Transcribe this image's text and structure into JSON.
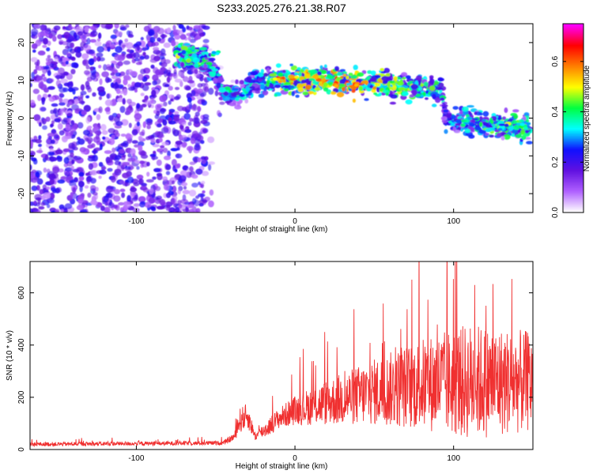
{
  "title": "S233.2025.276.21.38.R07",
  "colors": {
    "snr_line": "#f03030",
    "cmap_stops": [
      "#ffffff",
      "#b060ff",
      "#6010e0",
      "#1010ff",
      "#00ffff",
      "#00ff40",
      "#ffff00",
      "#ff8000",
      "#ff0000",
      "#ff00ff"
    ]
  },
  "chart_data": [
    {
      "type": "heatmap",
      "xlabel": "Height of straight line (km)",
      "ylabel": "Frequency (Hz)",
      "xlim": [
        -167,
        150
      ],
      "ylim": [
        -25,
        25
      ],
      "xticks": [
        -100,
        0,
        100
      ],
      "xtick_labels": [
        "-100",
        "0",
        "100"
      ],
      "yticks": [
        -20,
        -10,
        0,
        10,
        20
      ],
      "ytick_labels": [
        "-20",
        "-10",
        "0",
        "10",
        "20"
      ],
      "colorbar": {
        "label": "Normalized spectral amplitude",
        "range": [
          0.0,
          0.75
        ],
        "ticks": [
          0.0,
          0.2,
          0.4,
          0.6
        ],
        "tick_labels": [
          "0.0",
          "0.2",
          "0.4",
          "0.6"
        ]
      },
      "noise_region": {
        "x": [
          -167,
          -55
        ],
        "y": [
          -25,
          25
        ],
        "amplitude": [
          0.05,
          0.25
        ]
      },
      "signal_track": [
        {
          "x": -75,
          "freq": 17,
          "amp": 0.45
        },
        {
          "x": -60,
          "freq": 16,
          "amp": 0.45
        },
        {
          "x": -52,
          "freq": 13,
          "amp": 0.35
        },
        {
          "x": -45,
          "freq": 7,
          "amp": 0.4
        },
        {
          "x": -35,
          "freq": 6,
          "amp": 0.35
        },
        {
          "x": -25,
          "freq": 10,
          "amp": 0.4
        },
        {
          "x": -10,
          "freq": 10,
          "amp": 0.5
        },
        {
          "x": 0,
          "freq": 10,
          "amp": 0.55
        },
        {
          "x": 20,
          "freq": 10,
          "amp": 0.6
        },
        {
          "x": 40,
          "freq": 9,
          "amp": 0.6
        },
        {
          "x": 60,
          "freq": 9,
          "amp": 0.5
        },
        {
          "x": 80,
          "freq": 8,
          "amp": 0.45
        },
        {
          "x": 92,
          "freq": 8,
          "amp": 0.4
        },
        {
          "x": 95,
          "freq": 0,
          "amp": 0.35
        },
        {
          "x": 110,
          "freq": -1,
          "amp": 0.4
        },
        {
          "x": 125,
          "freq": -2,
          "amp": 0.45
        },
        {
          "x": 140,
          "freq": -2,
          "amp": 0.45
        },
        {
          "x": 148,
          "freq": -3,
          "amp": 0.4
        }
      ],
      "peaks": [
        {
          "x": -10,
          "freq": 10,
          "amp": 0.65
        },
        {
          "x": 25,
          "freq": 9,
          "amp": 0.7
        },
        {
          "x": 40,
          "freq": 9,
          "amp": 0.7
        },
        {
          "x": -50,
          "freq": 17,
          "amp": 0.45
        },
        {
          "x": 145,
          "freq": -2,
          "amp": 0.45
        }
      ]
    },
    {
      "type": "line",
      "xlabel": "Height of straight line (km)",
      "ylabel": "SNR (10 * v/v)",
      "xlim": [
        -167,
        150
      ],
      "ylim": [
        0,
        720
      ],
      "xticks": [
        -100,
        0,
        100
      ],
      "xtick_labels": [
        "-100",
        "0",
        "100"
      ],
      "yticks": [
        0,
        200,
        400,
        600
      ],
      "ytick_labels": [
        "0",
        "200",
        "400",
        "600"
      ],
      "envelope": [
        {
          "x": -167,
          "mean": 20,
          "spread": 10
        },
        {
          "x": -45,
          "mean": 25,
          "spread": 10
        },
        {
          "x": -38,
          "mean": 50,
          "spread": 20
        },
        {
          "x": -35,
          "mean": 110,
          "spread": 60
        },
        {
          "x": -30,
          "mean": 130,
          "spread": 60
        },
        {
          "x": -25,
          "mean": 50,
          "spread": 20
        },
        {
          "x": -18,
          "mean": 80,
          "spread": 40
        },
        {
          "x": -10,
          "mean": 120,
          "spread": 50
        },
        {
          "x": 0,
          "mean": 150,
          "spread": 70
        },
        {
          "x": 20,
          "mean": 180,
          "spread": 110
        },
        {
          "x": 50,
          "mean": 220,
          "spread": 160
        },
        {
          "x": 80,
          "mean": 250,
          "spread": 220
        },
        {
          "x": 110,
          "mean": 260,
          "spread": 280
        },
        {
          "x": 150,
          "mean": 260,
          "spread": 240
        }
      ]
    }
  ]
}
